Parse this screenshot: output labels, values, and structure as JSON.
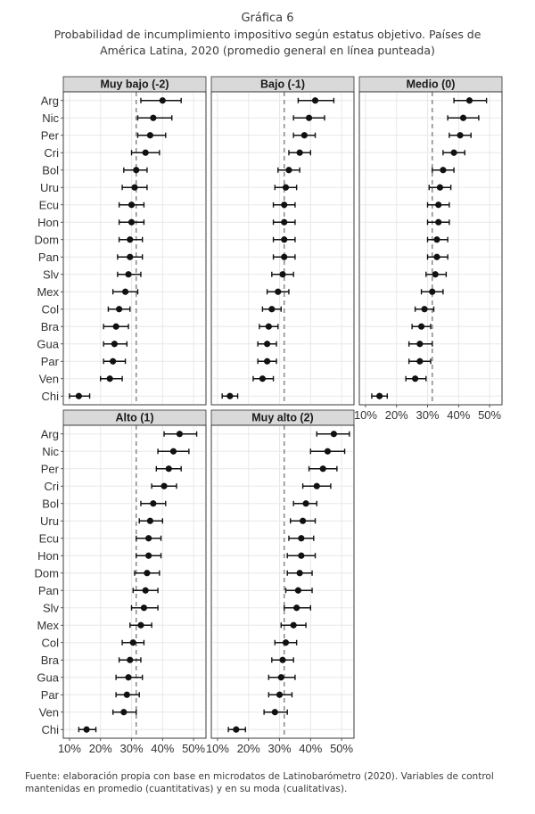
{
  "header": {
    "graph_number": "Gráfica 6",
    "title": "Probabilidad de incumplimiento impositivo según estatus objetivo. Países de América Latina, 2020 (promedio general en línea punteada)"
  },
  "footer": {
    "source": "Fuente: elaboración propia con base en microdatos de Latinobarómetro (2020). Variables de control mantenidas en promedio (cuantitativas) y en su moda (cualitativas)."
  },
  "chart_data": {
    "type": "scatter",
    "chart_kind": "dot-and-whisker (point estimates with confidence intervals), faceted",
    "countries": [
      "Arg",
      "Nic",
      "Per",
      "Cri",
      "Bol",
      "Uru",
      "Ecu",
      "Hon",
      "Dom",
      "Pan",
      "Slv",
      "Mex",
      "Col",
      "Bra",
      "Gua",
      "Par",
      "Ven",
      "Chi"
    ],
    "x_ticks": [
      "10%",
      "20%",
      "30%",
      "40%",
      "50%"
    ],
    "x_tick_values": [
      10,
      20,
      30,
      40,
      50
    ],
    "xlim": [
      8,
      54
    ],
    "reference_line": {
      "value": 31.5,
      "style": "dashed"
    },
    "colors": {
      "points": "#111111",
      "strip": "#d9d9d9",
      "grid": "#e8e8e8",
      "ref_line": "#888888"
    },
    "panels": [
      {
        "title": "Muy bajo (-2)",
        "values": [
          40.0,
          37.0,
          36.0,
          34.5,
          31.5,
          31.0,
          30.0,
          30.0,
          29.5,
          29.5,
          29.0,
          28.0,
          26.0,
          25.0,
          24.5,
          24.0,
          23.0,
          13.0
        ],
        "low": [
          33.0,
          32.0,
          32.0,
          30.0,
          27.5,
          27.0,
          26.0,
          26.0,
          26.0,
          25.5,
          25.5,
          24.0,
          22.5,
          21.0,
          21.0,
          21.0,
          20.0,
          10.0
        ],
        "high": [
          46.0,
          43.0,
          41.0,
          39.0,
          35.0,
          35.0,
          34.0,
          34.0,
          33.5,
          33.5,
          33.0,
          32.0,
          29.5,
          29.0,
          28.5,
          28.0,
          27.0,
          16.5
        ]
      },
      {
        "title": "Bajo (-1)",
        "values": [
          41.5,
          39.5,
          38.0,
          36.5,
          33.0,
          32.0,
          31.5,
          31.5,
          31.5,
          31.5,
          31.0,
          29.5,
          27.5,
          26.5,
          26.0,
          26.0,
          24.5,
          14.0
        ],
        "low": [
          36.0,
          34.5,
          34.5,
          33.0,
          29.5,
          28.5,
          28.0,
          28.0,
          28.0,
          28.0,
          27.5,
          26.0,
          24.5,
          23.5,
          23.0,
          23.0,
          21.5,
          11.5
        ],
        "high": [
          47.5,
          44.5,
          41.5,
          40.0,
          36.5,
          35.5,
          35.0,
          35.0,
          35.0,
          35.0,
          34.5,
          33.0,
          30.5,
          29.5,
          29.0,
          29.0,
          28.0,
          16.5
        ]
      },
      {
        "title": "Medio (0)",
        "values": [
          43.5,
          41.5,
          40.5,
          38.5,
          35.0,
          34.0,
          33.5,
          33.5,
          33.0,
          33.0,
          32.5,
          31.5,
          29.0,
          28.0,
          27.5,
          27.5,
          26.0,
          14.5
        ],
        "low": [
          38.5,
          36.5,
          37.0,
          35.0,
          31.5,
          30.5,
          30.0,
          30.0,
          30.0,
          30.0,
          29.5,
          28.0,
          26.0,
          25.0,
          24.0,
          24.0,
          23.0,
          12.0
        ],
        "high": [
          49.0,
          46.5,
          44.0,
          42.0,
          38.5,
          37.5,
          37.0,
          37.0,
          36.5,
          36.5,
          36.0,
          35.0,
          32.0,
          31.0,
          31.5,
          31.0,
          29.5,
          17.0
        ]
      },
      {
        "title": "Alto (1)",
        "values": [
          45.5,
          43.5,
          42.0,
          40.5,
          37.0,
          36.0,
          35.5,
          35.5,
          35.0,
          34.5,
          34.0,
          33.0,
          30.5,
          29.5,
          29.0,
          28.5,
          27.5,
          15.5
        ],
        "low": [
          40.5,
          38.5,
          38.0,
          36.5,
          33.0,
          32.5,
          31.5,
          31.5,
          31.0,
          30.5,
          30.0,
          29.5,
          27.0,
          26.0,
          25.0,
          25.0,
          24.0,
          13.0
        ],
        "high": [
          51.0,
          48.5,
          46.0,
          44.5,
          41.0,
          40.0,
          39.5,
          39.5,
          39.0,
          38.5,
          38.5,
          36.5,
          34.0,
          33.0,
          33.5,
          32.5,
          31.5,
          18.5
        ]
      },
      {
        "title": "Muy alto (2)",
        "values": [
          47.5,
          45.5,
          44.0,
          42.0,
          38.5,
          37.5,
          37.0,
          37.0,
          36.5,
          36.0,
          35.5,
          34.5,
          32.0,
          31.0,
          30.5,
          30.0,
          28.5,
          16.0
        ],
        "low": [
          42.0,
          40.0,
          39.5,
          37.5,
          34.5,
          33.5,
          33.0,
          32.5,
          32.5,
          32.0,
          31.5,
          30.5,
          28.5,
          27.5,
          26.5,
          26.5,
          25.0,
          13.5
        ],
        "high": [
          52.5,
          51.0,
          48.5,
          46.5,
          42.0,
          41.5,
          41.0,
          41.5,
          40.5,
          40.5,
          40.0,
          38.5,
          35.5,
          34.5,
          35.0,
          34.0,
          32.5,
          19.0
        ]
      }
    ]
  }
}
